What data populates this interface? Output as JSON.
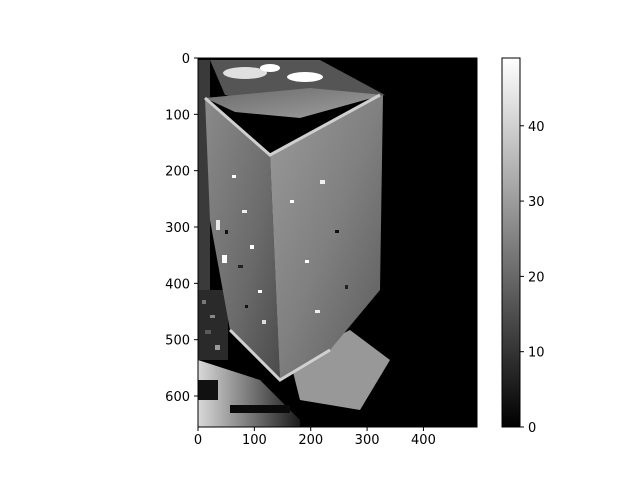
{
  "chart_data": {
    "type": "heatmap",
    "title": "",
    "xlabel": "",
    "ylabel": "",
    "colormap": "gray",
    "image_extent": {
      "x": [
        0,
        495
      ],
      "y": [
        0,
        655
      ]
    },
    "x_ticks": [
      0,
      100,
      200,
      300,
      400
    ],
    "y_ticks": [
      0,
      100,
      200,
      300,
      400,
      500,
      600
    ],
    "colorbar": {
      "range": [
        0,
        49
      ],
      "ticks": [
        0,
        10,
        20,
        30,
        40
      ]
    },
    "description_regions": {
      "right_region_value": 0,
      "object_face_values_approx": [
        20,
        35
      ]
    }
  },
  "colors": {
    "background": "#ffffff",
    "axis": "#000000"
  }
}
